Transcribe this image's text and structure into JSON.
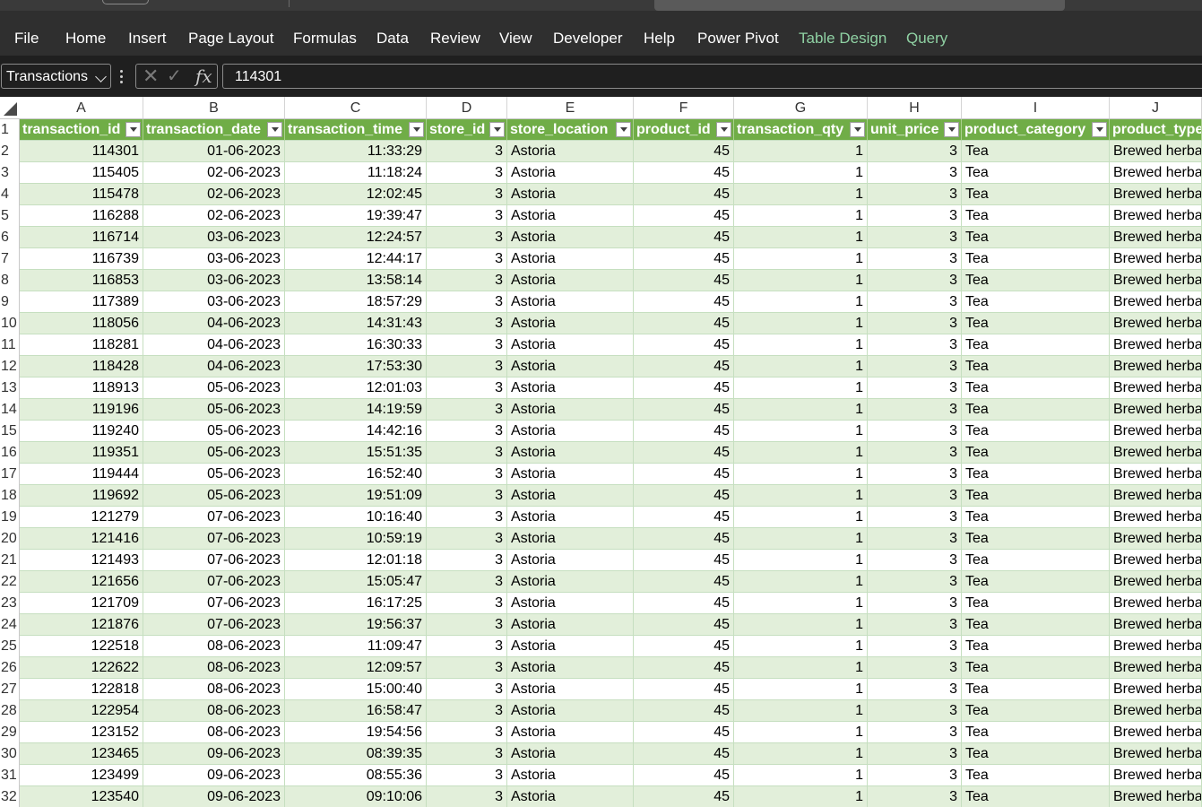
{
  "ribbon": {
    "tabs": [
      {
        "label": "File",
        "contextual": false
      },
      {
        "label": "Home",
        "contextual": false
      },
      {
        "label": "Insert",
        "contextual": false
      },
      {
        "label": "Page Layout",
        "contextual": false
      },
      {
        "label": "Formulas",
        "contextual": false
      },
      {
        "label": "Data",
        "contextual": false
      },
      {
        "label": "Review",
        "contextual": false
      },
      {
        "label": "View",
        "contextual": false
      },
      {
        "label": "Developer",
        "contextual": false
      },
      {
        "label": "Help",
        "contextual": false
      },
      {
        "label": "Power Pivot",
        "contextual": false
      },
      {
        "label": "Table Design",
        "contextual": true
      },
      {
        "label": "Query",
        "contextual": true
      }
    ],
    "contextual_color": "#8fd1a3"
  },
  "formula_bar": {
    "name_box": "Transactions",
    "fx_label": "fx",
    "value": "114301"
  },
  "grid": {
    "column_letters": [
      "A",
      "B",
      "C",
      "D",
      "E",
      "F",
      "G",
      "H",
      "I",
      "J"
    ],
    "header_row_number": "1",
    "headers": [
      "transaction_id",
      "transaction_date",
      "transaction_time",
      "store_id",
      "store_location",
      "product_id",
      "transaction_qty",
      "unit_price",
      "product_category",
      "product_type"
    ],
    "header_color": "#70ad47",
    "band_color": "#e2efda",
    "rows": [
      {
        "n": "2",
        "cells": [
          "114301",
          "01-06-2023",
          "11:33:29",
          "3",
          "Astoria",
          "45",
          "1",
          "3",
          "Tea",
          "Brewed herbal tea"
        ]
      },
      {
        "n": "3",
        "cells": [
          "115405",
          "02-06-2023",
          "11:18:24",
          "3",
          "Astoria",
          "45",
          "1",
          "3",
          "Tea",
          "Brewed herbal tea"
        ]
      },
      {
        "n": "4",
        "cells": [
          "115478",
          "02-06-2023",
          "12:02:45",
          "3",
          "Astoria",
          "45",
          "1",
          "3",
          "Tea",
          "Brewed herbal tea"
        ]
      },
      {
        "n": "5",
        "cells": [
          "116288",
          "02-06-2023",
          "19:39:47",
          "3",
          "Astoria",
          "45",
          "1",
          "3",
          "Tea",
          "Brewed herbal tea"
        ]
      },
      {
        "n": "6",
        "cells": [
          "116714",
          "03-06-2023",
          "12:24:57",
          "3",
          "Astoria",
          "45",
          "1",
          "3",
          "Tea",
          "Brewed herbal tea"
        ]
      },
      {
        "n": "7",
        "cells": [
          "116739",
          "03-06-2023",
          "12:44:17",
          "3",
          "Astoria",
          "45",
          "1",
          "3",
          "Tea",
          "Brewed herbal tea"
        ]
      },
      {
        "n": "8",
        "cells": [
          "116853",
          "03-06-2023",
          "13:58:14",
          "3",
          "Astoria",
          "45",
          "1",
          "3",
          "Tea",
          "Brewed herbal tea"
        ]
      },
      {
        "n": "9",
        "cells": [
          "117389",
          "03-06-2023",
          "18:57:29",
          "3",
          "Astoria",
          "45",
          "1",
          "3",
          "Tea",
          "Brewed herbal tea"
        ]
      },
      {
        "n": "10",
        "cells": [
          "118056",
          "04-06-2023",
          "14:31:43",
          "3",
          "Astoria",
          "45",
          "1",
          "3",
          "Tea",
          "Brewed herbal tea"
        ]
      },
      {
        "n": "11",
        "cells": [
          "118281",
          "04-06-2023",
          "16:30:33",
          "3",
          "Astoria",
          "45",
          "1",
          "3",
          "Tea",
          "Brewed herbal tea"
        ]
      },
      {
        "n": "12",
        "cells": [
          "118428",
          "04-06-2023",
          "17:53:30",
          "3",
          "Astoria",
          "45",
          "1",
          "3",
          "Tea",
          "Brewed herbal tea"
        ]
      },
      {
        "n": "13",
        "cells": [
          "118913",
          "05-06-2023",
          "12:01:03",
          "3",
          "Astoria",
          "45",
          "1",
          "3",
          "Tea",
          "Brewed herbal tea"
        ]
      },
      {
        "n": "14",
        "cells": [
          "119196",
          "05-06-2023",
          "14:19:59",
          "3",
          "Astoria",
          "45",
          "1",
          "3",
          "Tea",
          "Brewed herbal tea"
        ]
      },
      {
        "n": "15",
        "cells": [
          "119240",
          "05-06-2023",
          "14:42:16",
          "3",
          "Astoria",
          "45",
          "1",
          "3",
          "Tea",
          "Brewed herbal tea"
        ]
      },
      {
        "n": "16",
        "cells": [
          "119351",
          "05-06-2023",
          "15:51:35",
          "3",
          "Astoria",
          "45",
          "1",
          "3",
          "Tea",
          "Brewed herbal tea"
        ]
      },
      {
        "n": "17",
        "cells": [
          "119444",
          "05-06-2023",
          "16:52:40",
          "3",
          "Astoria",
          "45",
          "1",
          "3",
          "Tea",
          "Brewed herbal tea"
        ]
      },
      {
        "n": "18",
        "cells": [
          "119692",
          "05-06-2023",
          "19:51:09",
          "3",
          "Astoria",
          "45",
          "1",
          "3",
          "Tea",
          "Brewed herbal tea"
        ]
      },
      {
        "n": "19",
        "cells": [
          "121279",
          "07-06-2023",
          "10:16:40",
          "3",
          "Astoria",
          "45",
          "1",
          "3",
          "Tea",
          "Brewed herbal tea"
        ]
      },
      {
        "n": "20",
        "cells": [
          "121416",
          "07-06-2023",
          "10:59:19",
          "3",
          "Astoria",
          "45",
          "1",
          "3",
          "Tea",
          "Brewed herbal tea"
        ]
      },
      {
        "n": "21",
        "cells": [
          "121493",
          "07-06-2023",
          "12:01:18",
          "3",
          "Astoria",
          "45",
          "1",
          "3",
          "Tea",
          "Brewed herbal tea"
        ]
      },
      {
        "n": "22",
        "cells": [
          "121656",
          "07-06-2023",
          "15:05:47",
          "3",
          "Astoria",
          "45",
          "1",
          "3",
          "Tea",
          "Brewed herbal tea"
        ]
      },
      {
        "n": "23",
        "cells": [
          "121709",
          "07-06-2023",
          "16:17:25",
          "3",
          "Astoria",
          "45",
          "1",
          "3",
          "Tea",
          "Brewed herbal tea"
        ]
      },
      {
        "n": "24",
        "cells": [
          "121876",
          "07-06-2023",
          "19:56:37",
          "3",
          "Astoria",
          "45",
          "1",
          "3",
          "Tea",
          "Brewed herbal tea"
        ]
      },
      {
        "n": "25",
        "cells": [
          "122518",
          "08-06-2023",
          "11:09:47",
          "3",
          "Astoria",
          "45",
          "1",
          "3",
          "Tea",
          "Brewed herbal tea"
        ]
      },
      {
        "n": "26",
        "cells": [
          "122622",
          "08-06-2023",
          "12:09:57",
          "3",
          "Astoria",
          "45",
          "1",
          "3",
          "Tea",
          "Brewed herbal tea"
        ]
      },
      {
        "n": "27",
        "cells": [
          "122818",
          "08-06-2023",
          "15:00:40",
          "3",
          "Astoria",
          "45",
          "1",
          "3",
          "Tea",
          "Brewed herbal tea"
        ]
      },
      {
        "n": "28",
        "cells": [
          "122954",
          "08-06-2023",
          "16:58:47",
          "3",
          "Astoria",
          "45",
          "1",
          "3",
          "Tea",
          "Brewed herbal tea"
        ]
      },
      {
        "n": "29",
        "cells": [
          "123152",
          "08-06-2023",
          "19:54:56",
          "3",
          "Astoria",
          "45",
          "1",
          "3",
          "Tea",
          "Brewed herbal tea"
        ]
      },
      {
        "n": "30",
        "cells": [
          "123465",
          "09-06-2023",
          "08:39:35",
          "3",
          "Astoria",
          "45",
          "1",
          "3",
          "Tea",
          "Brewed herbal tea"
        ]
      },
      {
        "n": "31",
        "cells": [
          "123499",
          "09-06-2023",
          "08:55:36",
          "3",
          "Astoria",
          "45",
          "1",
          "3",
          "Tea",
          "Brewed herbal tea"
        ]
      },
      {
        "n": "32",
        "cells": [
          "123540",
          "09-06-2023",
          "09:10:06",
          "3",
          "Astoria",
          "45",
          "1",
          "3",
          "Tea",
          "Brewed herbal tea"
        ]
      }
    ]
  }
}
